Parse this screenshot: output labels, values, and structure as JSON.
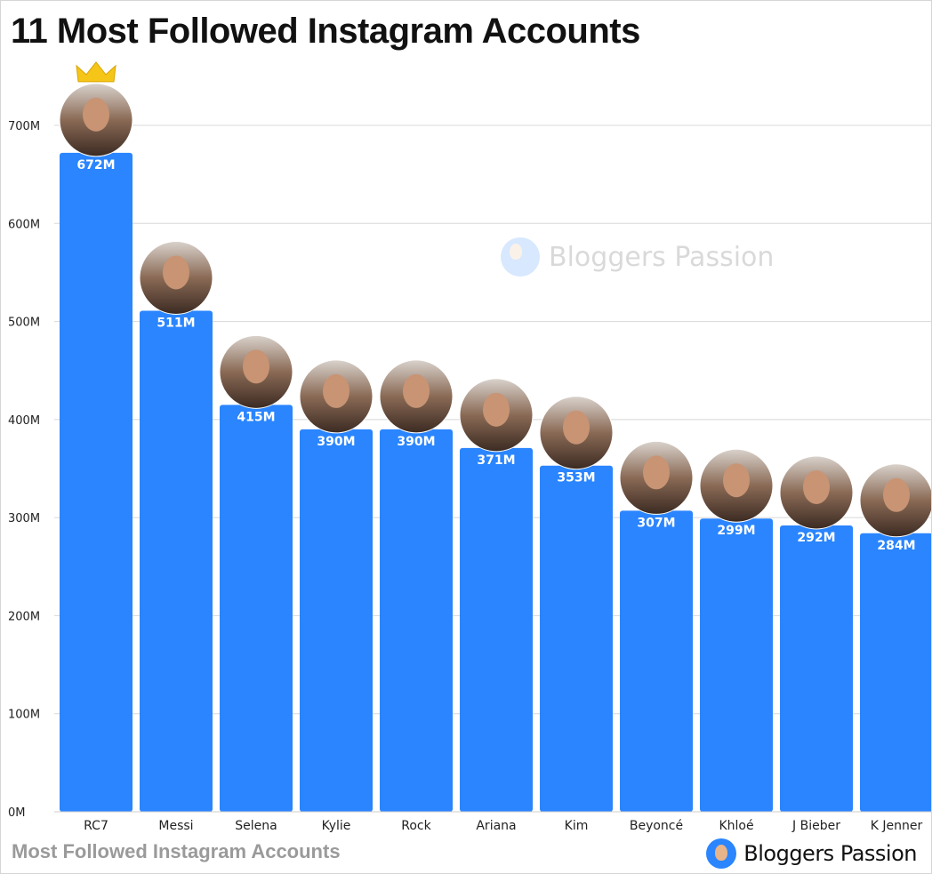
{
  "title": "11 Most Followed Instagram Accounts",
  "footer": {
    "caption": "Most Followed Instagram Accounts",
    "brand": "Bloggers Passion"
  },
  "watermark": "Bloggers Passion",
  "chart_data": {
    "type": "bar",
    "title": "11 Most Followed Instagram Accounts",
    "categories": [
      "RC7",
      "Messi",
      "Selena",
      "Kylie",
      "Rock",
      "Ariana",
      "Kim",
      "Beyoncé",
      "Khloé",
      "J Bieber",
      "K Jenner"
    ],
    "values": [
      672,
      511,
      415,
      390,
      390,
      371,
      353,
      307,
      299,
      292,
      284
    ],
    "value_labels": [
      "672M",
      "511M",
      "415M",
      "390M",
      "390M",
      "371M",
      "353M",
      "307M",
      "299M",
      "292M",
      "284M"
    ],
    "unit": "M",
    "ylim": [
      0,
      700
    ],
    "yticks": [
      0,
      100,
      200,
      300,
      400,
      500,
      600,
      700
    ],
    "ytick_labels": [
      "0M",
      "100M",
      "200M",
      "300M",
      "400M",
      "500M",
      "600M",
      "700M"
    ],
    "grid": true,
    "bar_color": "#2A85FF",
    "avatars": true,
    "crown_on_first": true,
    "crown_color": "#F5C518"
  }
}
